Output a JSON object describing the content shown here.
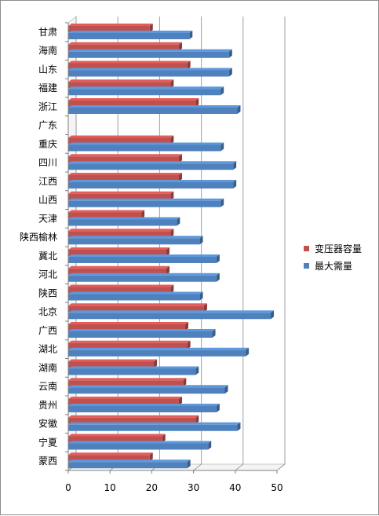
{
  "chart_data": {
    "type": "bar",
    "orientation": "horizontal",
    "categories": [
      "甘肃",
      "海南",
      "山东",
      "福建",
      "浙江",
      "广东",
      "重庆",
      "四川",
      "江西",
      "山西",
      "天津",
      "陕西榆林",
      "冀北",
      "河北",
      "陕西",
      "北京",
      "广西",
      "湖北",
      "湖南",
      "云南",
      "贵州",
      "安徽",
      "宁夏",
      "蒙西"
    ],
    "series": [
      {
        "name": "变压器容量",
        "color": "#c0504d",
        "values": [
          19.5,
          26.5,
          28.5,
          24.5,
          30.5,
          0,
          24.5,
          26.5,
          26.5,
          24.5,
          17.5,
          24.5,
          23.5,
          23.5,
          24.5,
          32.5,
          28,
          28.5,
          20.5,
          27.5,
          26.5,
          30.5,
          22.5,
          19.5
        ]
      },
      {
        "name": "最大需量",
        "color": "#4f81bd",
        "values": [
          29,
          38.5,
          38.5,
          36.5,
          40.5,
          0,
          36.5,
          39.5,
          39.5,
          36.5,
          26,
          31.5,
          35.5,
          35.5,
          31.5,
          48.5,
          34.5,
          42.5,
          30.5,
          37.5,
          35.5,
          40.5,
          33.5,
          28.5
        ]
      }
    ],
    "xlim": [
      0,
      50
    ],
    "xticks": [
      "0",
      "10",
      "20",
      "30",
      "40",
      "50"
    ],
    "grid": true,
    "legend_position": "right"
  }
}
